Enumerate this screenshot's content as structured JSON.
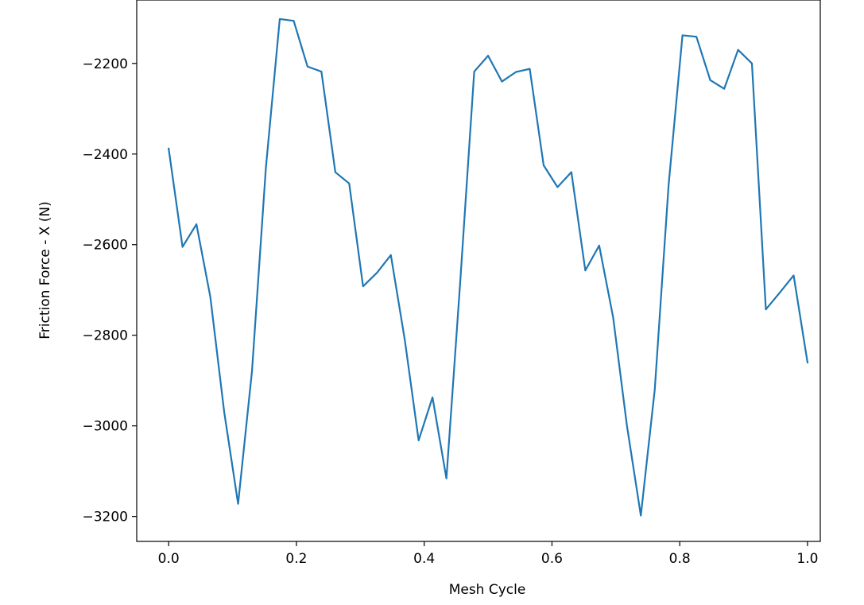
{
  "chart_data": {
    "type": "line",
    "title": "",
    "xlabel": "Mesh Cycle",
    "ylabel": "Friction Force - X (N)",
    "xlim": [
      -0.05,
      1.02
    ],
    "ylim": [
      -3255,
      -2060
    ],
    "xticks": [
      0.0,
      0.2,
      0.4,
      0.6,
      0.8,
      1.0
    ],
    "xtick_labels": [
      "0.0",
      "0.2",
      "0.4",
      "0.6",
      "0.8",
      "1.0"
    ],
    "yticks": [
      -3200,
      -3000,
      -2800,
      -2600,
      -2400,
      -2200
    ],
    "ytick_labels": [
      "−3200",
      "−3000",
      "−2800",
      "−2600",
      "−2400",
      "−2200"
    ],
    "grid": false,
    "line_color": "#1f77b4",
    "series": [
      {
        "x": [
          0.0,
          0.0217,
          0.0435,
          0.0652,
          0.087,
          0.1087,
          0.1304,
          0.1522,
          0.1739,
          0.1957,
          0.2174,
          0.2391,
          0.2609,
          0.2826,
          0.3043,
          0.3261,
          0.3478,
          0.3696,
          0.3913,
          0.413,
          0.4348,
          0.4565,
          0.4783,
          0.5,
          0.5217,
          0.5435,
          0.5652,
          0.587,
          0.6087,
          0.6304,
          0.6522,
          0.6739,
          0.6957,
          0.7174,
          0.7391,
          0.7609,
          0.7826,
          0.8043,
          0.8261,
          0.8478,
          0.8696,
          0.8913,
          0.913,
          0.9348,
          0.9565,
          0.9783,
          1.0
        ],
        "y": [
          -2388,
          -2605,
          -2555,
          -2715,
          -2970,
          -3172,
          -2880,
          -2430,
          -2102,
          -2106,
          -2207,
          -2218,
          -2440,
          -2465,
          -2692,
          -2662,
          -2623,
          -2810,
          -3032,
          -2937,
          -3116,
          -2680,
          -2218,
          -2183,
          -2240,
          -2219,
          -2212,
          -2425,
          -2473,
          -2440,
          -2657,
          -2602,
          -2760,
          -3000,
          -3198,
          -2920,
          -2468,
          -2138,
          -2141,
          -2237,
          -2256,
          -2170,
          -2200,
          -2743,
          -2706,
          -2668,
          -2860
        ]
      }
    ]
  }
}
